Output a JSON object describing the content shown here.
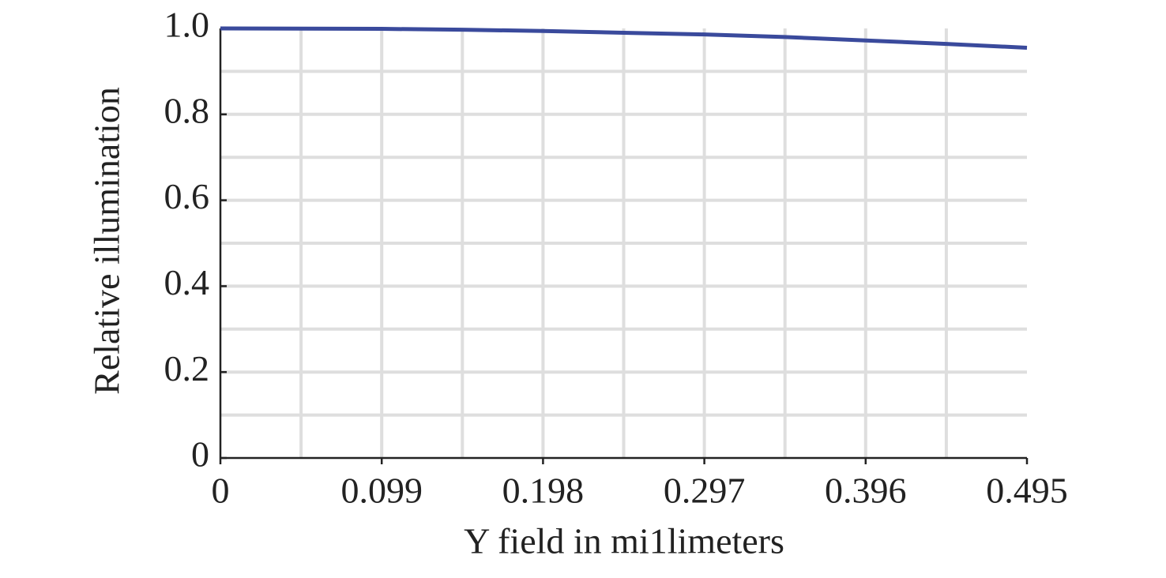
{
  "chart_data": {
    "type": "line",
    "xlabel": "Y field in mi1limeters",
    "ylabel": "Relative illumination",
    "x": [
      0,
      0.0495,
      0.099,
      0.1485,
      0.198,
      0.2475,
      0.297,
      0.3465,
      0.396,
      0.4455,
      0.495
    ],
    "series": [
      {
        "color": "#3a4a9c",
        "values": [
          1.0,
          0.9995,
          0.999,
          0.997,
          0.994,
          0.99,
          0.986,
          0.98,
          0.972,
          0.964,
          0.955
        ]
      }
    ],
    "xlim": [
      0,
      0.495
    ],
    "ylim": [
      0,
      1
    ],
    "xticks": [
      0,
      0.099,
      0.198,
      0.297,
      0.396,
      0.495
    ],
    "yticks": [
      0,
      0.2,
      0.4,
      0.6,
      0.8,
      {
        "value": 1,
        "label": "1.0"
      }
    ],
    "xgrid": [
      0.0495,
      0.099,
      0.1485,
      0.198,
      0.2475,
      0.297,
      0.3465,
      0.396,
      0.4455
    ],
    "ygrid": [
      0.1,
      0.2,
      0.3,
      0.4,
      0.5,
      0.6,
      0.7,
      0.8,
      0.9
    ],
    "grid": true
  }
}
